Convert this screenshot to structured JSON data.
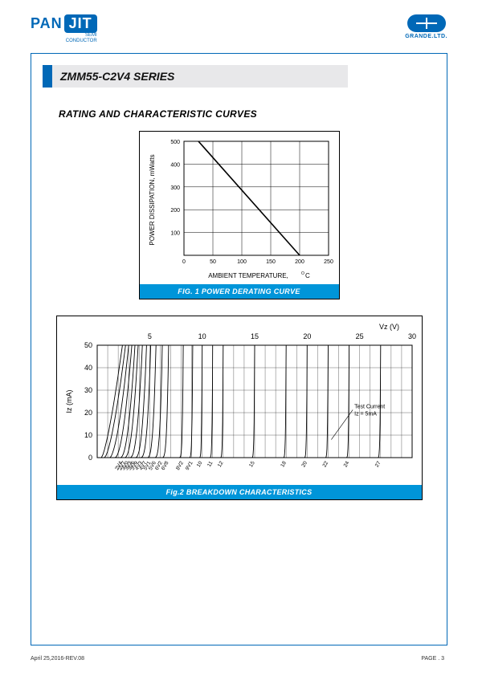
{
  "header": {
    "logo_pan": "PAN",
    "logo_jit": "JIT",
    "logo_sub1": "SEMI",
    "logo_sub2": "CONDUCTOR",
    "grande_label": "GRANDE.LTD."
  },
  "title": "ZMM55-C2V4 SERIES",
  "section_heading": "RATING AND CHARACTERISTIC CURVES",
  "chart1": {
    "type": "line",
    "xlabel": "AMBIENT TEMPERATURE,",
    "xlabel_unit": "O",
    "xlabel_unit2": "C",
    "ylabel": "POWER DISSIPATION, mWatts",
    "caption": "FIG. 1 POWER DERATING CURVE",
    "x_ticks": [
      0,
      50,
      100,
      150,
      200,
      250
    ],
    "y_ticks": [
      0,
      100,
      200,
      300,
      400,
      500
    ],
    "xlim": [
      0,
      250
    ],
    "ylim": [
      0,
      500
    ],
    "line": [
      [
        25,
        500
      ],
      [
        200,
        0
      ]
    ],
    "grid_color": "#000000",
    "line_color": "#000000",
    "background": "#ffffff",
    "tick_fontsize": 7,
    "label_fontsize": 8
  },
  "chart2": {
    "type": "line-family",
    "xlabel_top": "Vz (V)",
    "ylabel": "Iz (mA)",
    "caption": "Fig.2 BREAKDOWN CHARACTERISTICS",
    "annotation": "Test Current\nIz = 5mA",
    "x_ticks_top": [
      5,
      10,
      15,
      20,
      25,
      30
    ],
    "y_ticks": [
      0,
      10,
      20,
      30,
      40,
      50
    ],
    "xlim": [
      0,
      30
    ],
    "ylim": [
      0,
      50
    ],
    "x_bottom_labels": [
      "2V4",
      "2V7",
      "3V0",
      "3V3",
      "3V6",
      "3V9",
      "4V3",
      "4V7",
      "5V1",
      "5V6",
      "6V2",
      "6V8",
      "8V2",
      "9V1",
      "10",
      "11",
      "12",
      "15",
      "18",
      "20",
      "22",
      "24",
      "27"
    ],
    "x_bottom_positions": [
      2.4,
      2.7,
      3.0,
      3.3,
      3.6,
      3.9,
      4.3,
      4.7,
      5.1,
      5.6,
      6.2,
      6.8,
      8.2,
      9.1,
      10,
      11,
      12,
      15,
      18,
      20,
      22,
      24,
      27
    ],
    "curves": [
      {
        "peak_x": 2.4,
        "spread": 2.2
      },
      {
        "peak_x": 2.7,
        "spread": 2.0
      },
      {
        "peak_x": 3.0,
        "spread": 1.8
      },
      {
        "peak_x": 3.3,
        "spread": 1.6
      },
      {
        "peak_x": 3.6,
        "spread": 1.4
      },
      {
        "peak_x": 3.9,
        "spread": 1.3
      },
      {
        "peak_x": 4.3,
        "spread": 1.2
      },
      {
        "peak_x": 4.7,
        "spread": 1.1
      },
      {
        "peak_x": 5.1,
        "spread": 1.0
      },
      {
        "peak_x": 5.6,
        "spread": 0.9
      },
      {
        "peak_x": 6.2,
        "spread": 0.8
      },
      {
        "peak_x": 6.8,
        "spread": 0.7
      },
      {
        "peak_x": 8.2,
        "spread": 0.5
      },
      {
        "peak_x": 9.1,
        "spread": 0.45
      },
      {
        "peak_x": 10,
        "spread": 0.4
      },
      {
        "peak_x": 11,
        "spread": 0.4
      },
      {
        "peak_x": 12,
        "spread": 0.4
      },
      {
        "peak_x": 15,
        "spread": 0.4
      },
      {
        "peak_x": 18,
        "spread": 0.4
      },
      {
        "peak_x": 20,
        "spread": 0.4
      },
      {
        "peak_x": 22,
        "spread": 0.4
      },
      {
        "peak_x": 24,
        "spread": 0.4
      },
      {
        "peak_x": 27,
        "spread": 0.4
      }
    ],
    "grid_color": "#000000",
    "line_color": "#000000",
    "caption_bg": "#0095d9",
    "tick_fontsize": 7,
    "label_fontsize": 9,
    "annotation_fontsize": 7
  },
  "footer": {
    "left": "April 25,2016-REV.08",
    "right": "PAGE .  3"
  }
}
